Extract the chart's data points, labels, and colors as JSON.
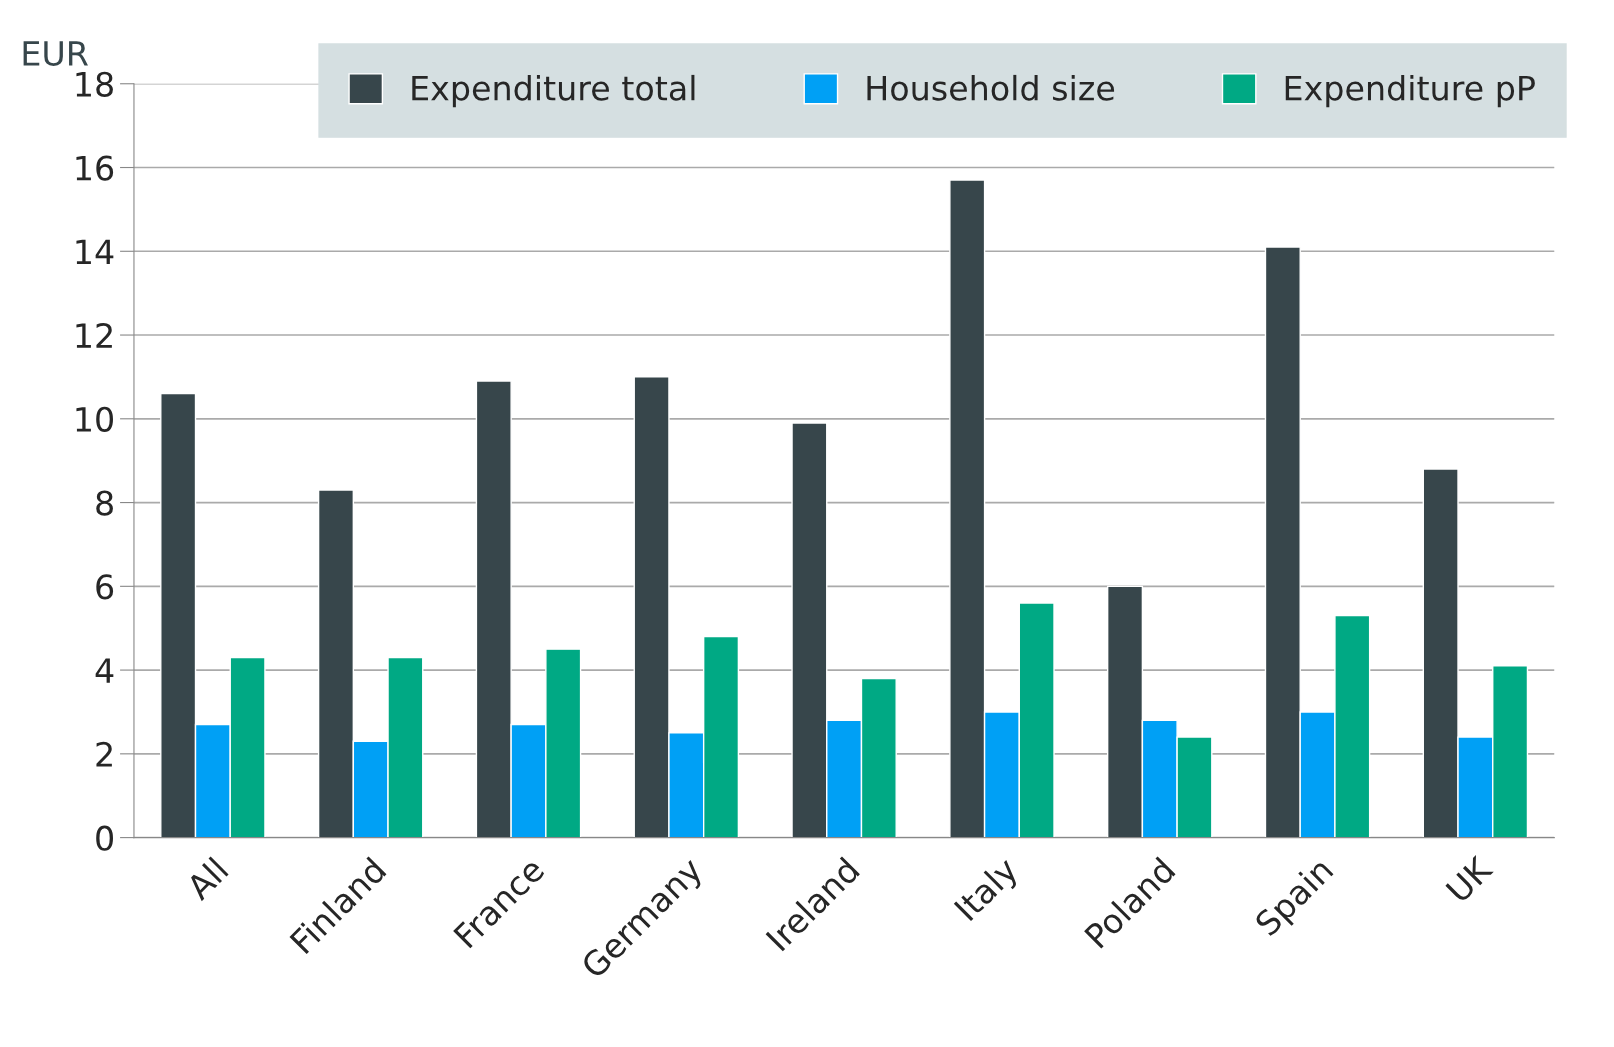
{
  "chart_data": {
    "type": "bar",
    "ylabel": "EUR",
    "categories": [
      "All",
      "Finland",
      "France",
      "Germany",
      "Ireland",
      "Italy",
      "Poland",
      "Spain",
      "UK"
    ],
    "series": [
      {
        "name": "Expenditure total",
        "color": "#37464b",
        "values": [
          10.6,
          8.3,
          10.9,
          11.0,
          9.9,
          15.7,
          6.0,
          14.1,
          8.8
        ]
      },
      {
        "name": "Household size",
        "color": "#00a0f5",
        "values": [
          2.7,
          2.3,
          2.7,
          2.5,
          2.8,
          3.0,
          2.8,
          3.0,
          2.4
        ]
      },
      {
        "name": "Expenditure pP",
        "color": "#00a984",
        "values": [
          4.3,
          4.3,
          4.5,
          4.8,
          3.8,
          5.6,
          2.4,
          5.3,
          4.1
        ]
      }
    ],
    "ylim": [
      0,
      18
    ],
    "yticks": [
      0,
      2,
      4,
      6,
      8,
      10,
      12,
      14,
      16,
      18
    ],
    "grid": "y",
    "legend": "top"
  }
}
